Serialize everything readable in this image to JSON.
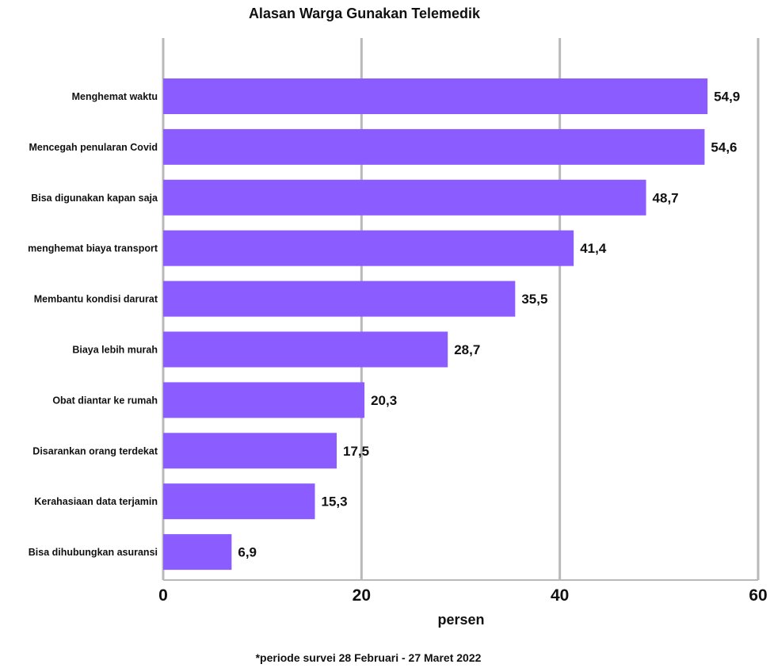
{
  "chart_data": {
    "type": "bar",
    "orientation": "horizontal",
    "title": "Alasan Warga Gunakan Telemedik",
    "xlabel": "persen",
    "ylabel": "",
    "footnote": "*periode survei 28 Februari - 27 Maret 2022",
    "xlim": [
      0,
      60
    ],
    "ticks": [
      "0",
      "20",
      "40",
      "60"
    ],
    "grid": true,
    "bar_color": "#8b5cff",
    "grid_color": "#b9b9b9",
    "categories": [
      "Menghemat waktu",
      "Mencegah penularan Covid",
      "Bisa digunakan kapan saja",
      "menghemat biaya transport",
      "Membantu kondisi darurat",
      "Biaya lebih murah",
      "Obat diantar ke rumah",
      "Disarankan orang terdekat",
      "Kerahasiaan data terjamin",
      "Bisa dihubungkan asuransi"
    ],
    "values": [
      54.9,
      54.6,
      48.7,
      41.4,
      35.5,
      28.7,
      20.3,
      17.5,
      15.3,
      6.9
    ],
    "value_labels": [
      "54,9",
      "54,6",
      "48,7",
      "41,4",
      "35,5",
      "28,7",
      "20,3",
      "17,5",
      "15,3",
      "6,9"
    ]
  }
}
